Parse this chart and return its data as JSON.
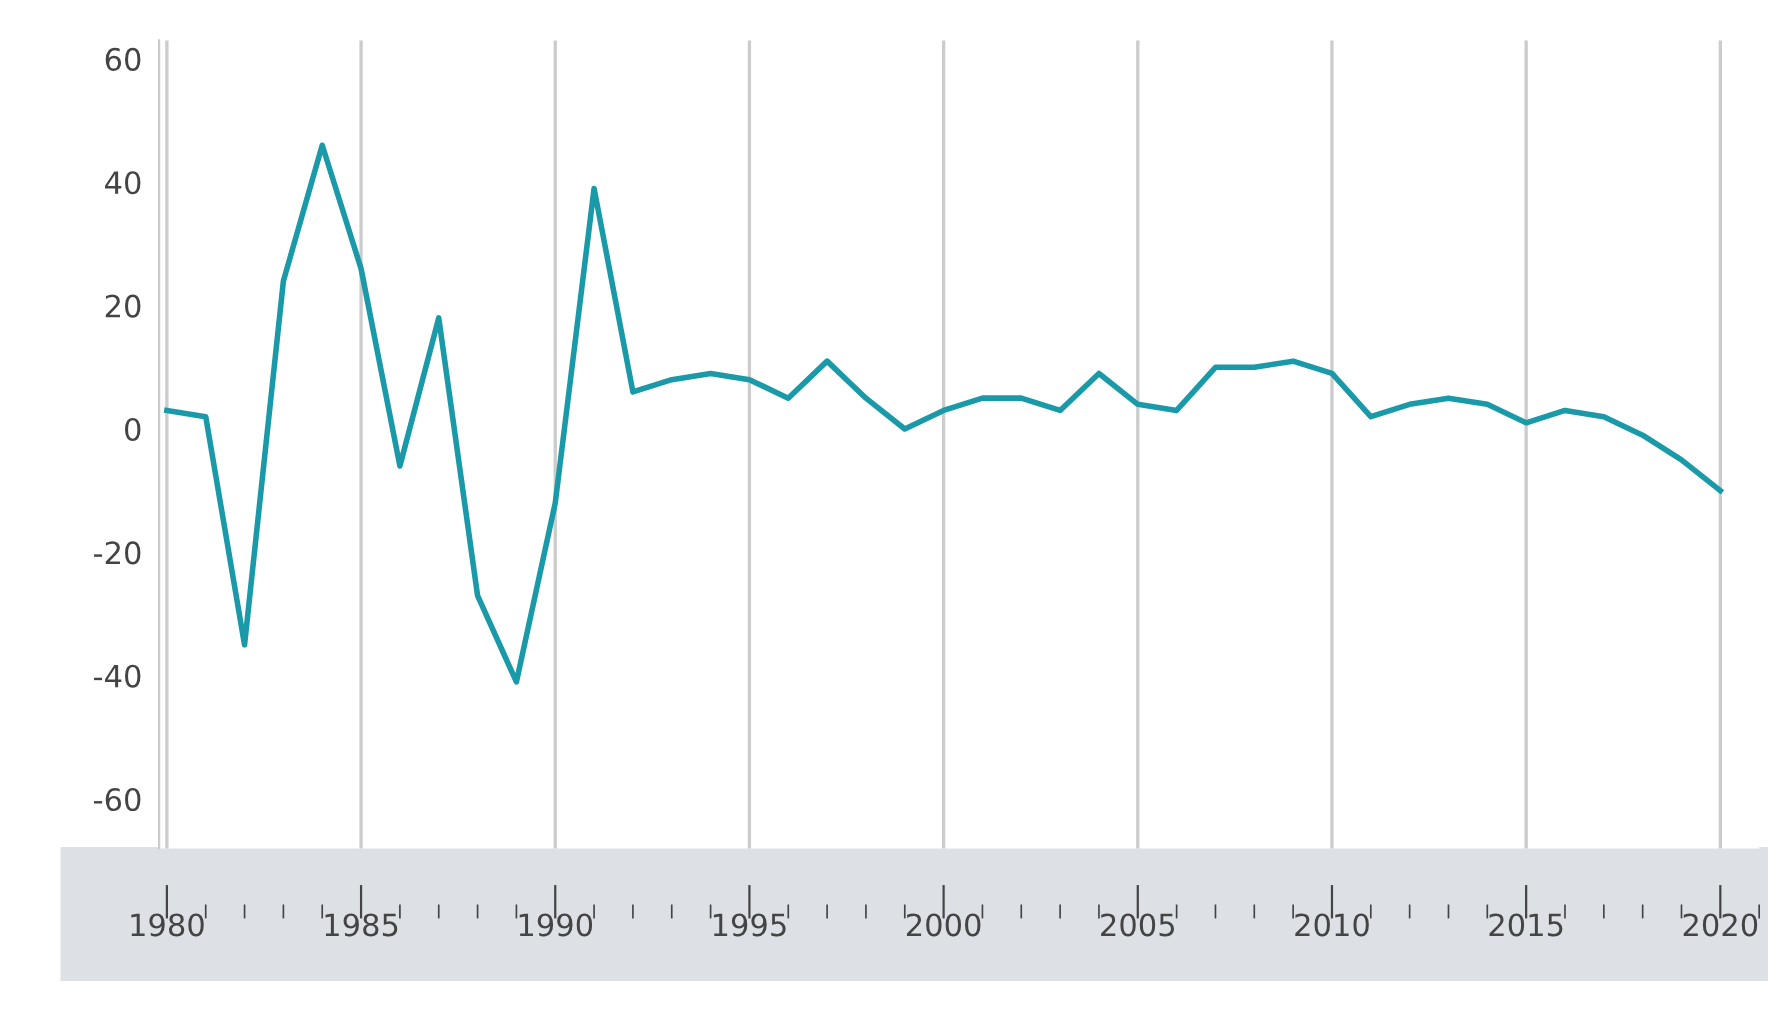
{
  "chart_data": {
    "type": "line",
    "x": [
      1980,
      1981,
      1982,
      1983,
      1984,
      1985,
      1986,
      1987,
      1988,
      1989,
      1990,
      1991,
      1992,
      1993,
      1994,
      1995,
      1996,
      1997,
      1998,
      1999,
      2000,
      2001,
      2002,
      2003,
      2004,
      2005,
      2006,
      2007,
      2008,
      2009,
      2010,
      2011,
      2012,
      2013,
      2014,
      2015,
      2016,
      2017,
      2018,
      2019,
      2020
    ],
    "series": [
      {
        "color": "#1a9aa8",
        "values": [
          3,
          2,
          -35,
          24,
          46,
          26,
          -6,
          18,
          -27,
          -41,
          -12,
          39,
          6,
          8,
          9,
          8,
          5,
          11,
          5,
          0,
          3,
          5,
          5,
          3,
          9,
          4,
          3,
          10,
          10,
          11,
          9,
          2,
          4,
          5,
          4,
          1,
          3,
          2,
          -1,
          -5,
          -10
        ]
      }
    ],
    "xlim": [
      1979.8,
      2021
    ],
    "xticks": [
      1980,
      1985,
      1990,
      1995,
      2000,
      2005,
      2010,
      2015,
      2020
    ],
    "ylim": [
      -68,
      63
    ],
    "yticks": [
      -60,
      -40,
      -20,
      0,
      20,
      40,
      60
    ],
    "grid": "x",
    "marker": "none",
    "line_style": "solid",
    "legend": false
  }
}
